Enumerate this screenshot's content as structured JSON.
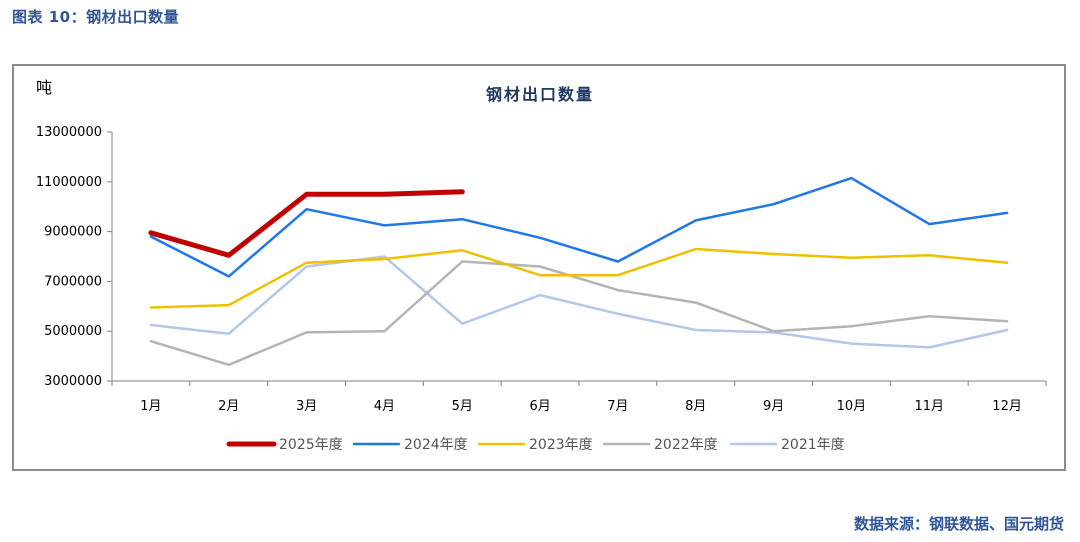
{
  "figure_title": "图表 10：钢材出口数量",
  "source": "数据来源：钢联数据、国元期货",
  "chart_data": {
    "type": "line",
    "title": "钢材出口数量",
    "ylabel": "吨",
    "xlabel": "",
    "categories": [
      "1月",
      "2月",
      "3月",
      "4月",
      "5月",
      "6月",
      "7月",
      "8月",
      "9月",
      "10月",
      "11月",
      "12月"
    ],
    "ylim": [
      3000000,
      13000000
    ],
    "yticks": [
      3000000,
      5000000,
      7000000,
      9000000,
      11000000,
      13000000
    ],
    "legend_position": "bottom",
    "grid": false,
    "series": [
      {
        "name": "2025年度",
        "color": "#c00000",
        "width": 5,
        "values": [
          8950000,
          8050000,
          10500000,
          10500000,
          10600000,
          null,
          null,
          null,
          null,
          null,
          null,
          null
        ]
      },
      {
        "name": "2024年度",
        "color": "#1f77e8",
        "width": 2.5,
        "values": [
          8800000,
          7200000,
          9900000,
          9250000,
          9500000,
          8750000,
          7800000,
          9450000,
          10100000,
          11150000,
          9300000,
          9750000
        ]
      },
      {
        "name": "2023年度",
        "color": "#f0c000",
        "width": 2.5,
        "values": [
          5950000,
          6050000,
          7750000,
          7900000,
          8250000,
          7250000,
          7250000,
          8300000,
          8100000,
          7950000,
          8050000,
          7750000
        ]
      },
      {
        "name": "2022年度",
        "color": "#b4b4b4",
        "width": 2.5,
        "values": [
          4600000,
          3650000,
          4950000,
          5000000,
          7800000,
          7600000,
          6650000,
          6150000,
          5000000,
          5200000,
          5600000,
          5400000
        ]
      },
      {
        "name": "2021年度",
        "color": "#b4c7e7",
        "width": 2.5,
        "values": [
          5250000,
          4900000,
          7600000,
          8000000,
          5300000,
          6450000,
          5700000,
          5050000,
          4950000,
          4500000,
          4350000,
          5050000
        ]
      }
    ]
  }
}
